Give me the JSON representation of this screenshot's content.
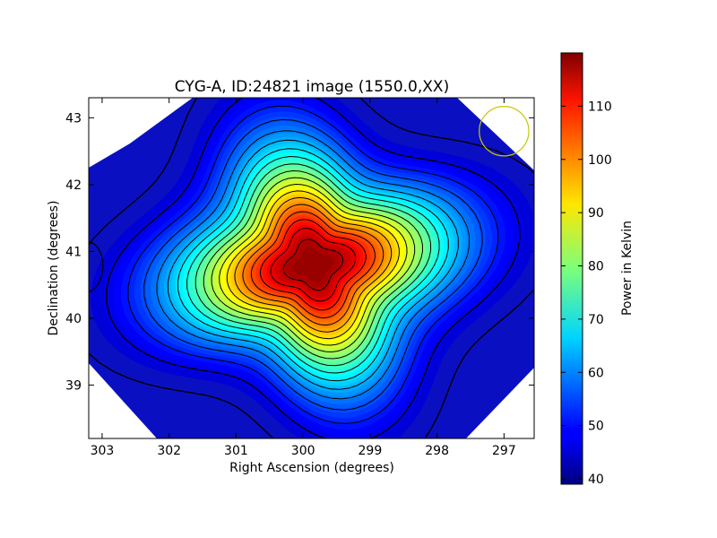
{
  "chart_data": {
    "type": "heatmap",
    "title": "CYG-A, ID:24821 image (1550.0,XX)",
    "xlabel": "Right Ascension (degrees)",
    "ylabel": "Declination (degrees)",
    "xlim": [
      303.2,
      296.55
    ],
    "ylim": [
      38.2,
      43.3
    ],
    "xticks": [
      303,
      302,
      301,
      300,
      299,
      298,
      297
    ],
    "yticks": [
      39,
      40,
      41,
      42,
      43
    ],
    "source": {
      "ra": 299.85,
      "dec": 40.8,
      "peak_kelvin": 120
    },
    "background_kelvin": 42,
    "contour_levels_kelvin": [
      44,
      48,
      52,
      56,
      60,
      64,
      68,
      72,
      76,
      80,
      84,
      88,
      92,
      96,
      100,
      104,
      108,
      112,
      116
    ],
    "beam_circle": {
      "ra": 297.0,
      "dec": 42.8,
      "radius_deg": 0.37,
      "color": "#c8c800"
    },
    "colorbar": {
      "label": "Power in Kelvin",
      "min": 39,
      "max": 120,
      "ticks": [
        40,
        50,
        60,
        70,
        80,
        90,
        100,
        110
      ],
      "colormap": "jet"
    }
  }
}
